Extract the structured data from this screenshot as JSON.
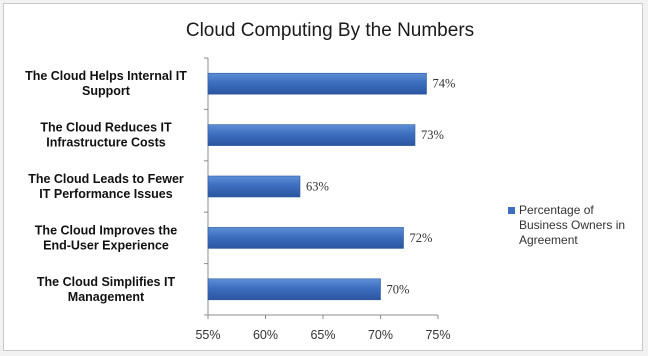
{
  "chart_data": {
    "type": "bar",
    "orientation": "horizontal",
    "title": "Cloud Computing By the Numbers",
    "categories": [
      [
        "The Cloud Helps Internal IT",
        "Support"
      ],
      [
        "The Cloud Reduces IT",
        "Infrastructure Costs"
      ],
      [
        "The Cloud Leads to Fewer",
        "IT Performance Issues"
      ],
      [
        "The Cloud Improves the",
        "End-User Experience"
      ],
      [
        "The Cloud Simplifies IT",
        "Management"
      ]
    ],
    "series": [
      {
        "name": [
          "Percentage of",
          "Business Owners in",
          "Agreement"
        ],
        "values": [
          74,
          73,
          63,
          72,
          70
        ],
        "labels": [
          "74%",
          "73%",
          "63%",
          "72%",
          "70%"
        ],
        "color": "#3d6ebf"
      }
    ],
    "x_ticks": [
      "55%",
      "60%",
      "65%",
      "70%",
      "75%"
    ],
    "xlim": [
      55,
      75
    ],
    "grid": false,
    "legend_position": "right"
  }
}
